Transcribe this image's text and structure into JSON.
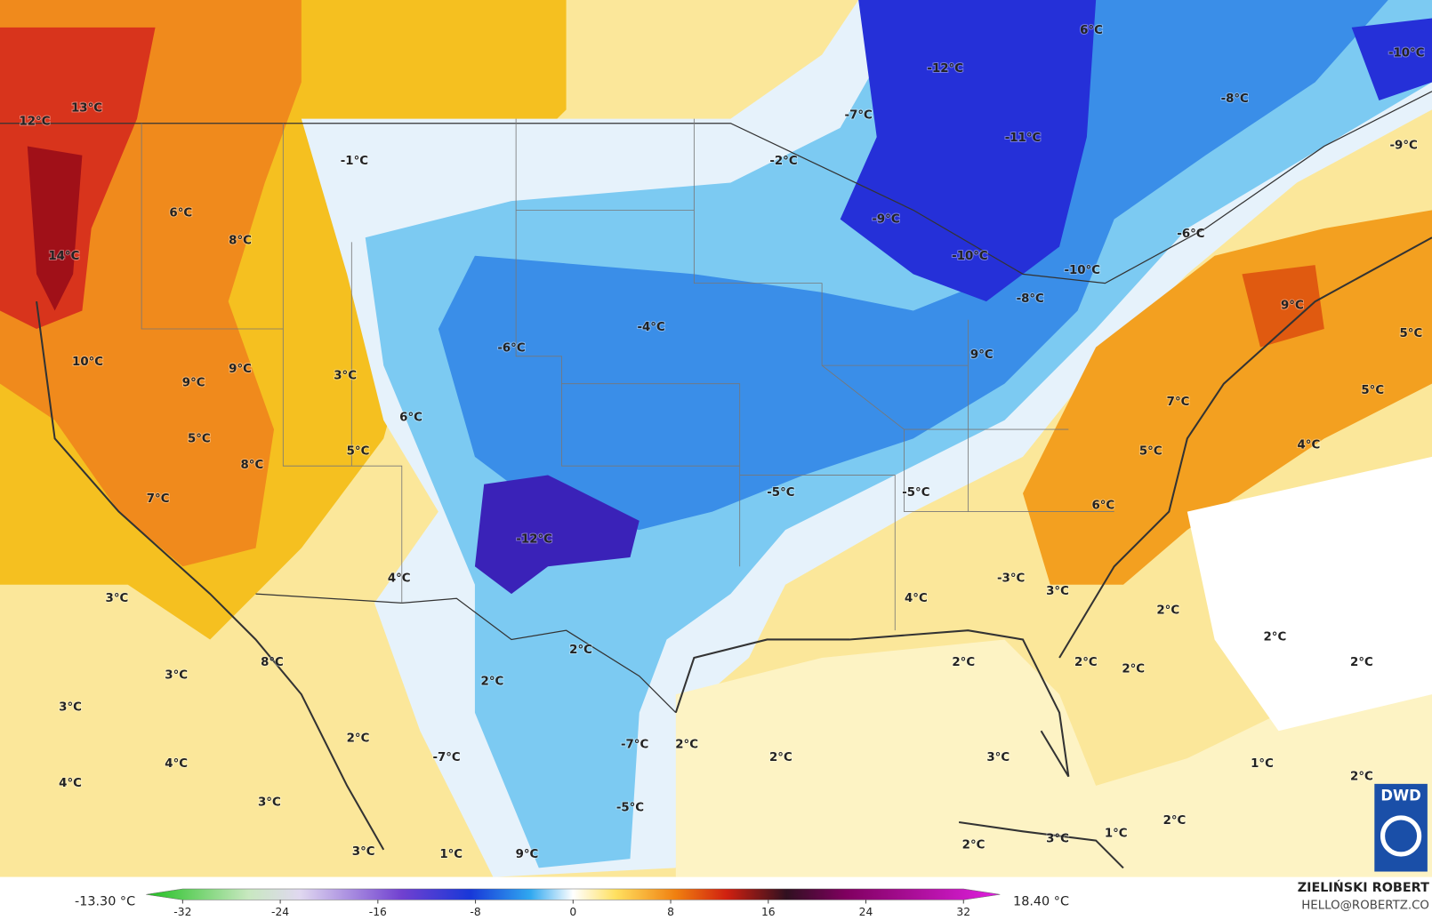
{
  "map": {
    "labels": [
      "6°C",
      "-12°C",
      "-10°C",
      "-7°C",
      "-8°C",
      "-11°C",
      "-9°C",
      "13°C",
      "12°C",
      "-1°C",
      "-2°C",
      "6°C",
      "8°C",
      "-9°C",
      "-6°C",
      "14°C",
      "-10°C",
      "-10°C",
      "-8°C",
      "9°C",
      "-4°C",
      "-6°C",
      "5°C",
      "10°C",
      "9°C",
      "9°C",
      "3°C",
      "9°C",
      "5°C",
      "7°C",
      "6°C",
      "5°C",
      "5°C",
      "8°C",
      "5°C",
      "4°C",
      "7°C",
      "-5°C",
      "-5°C",
      "6°C",
      "-12°C",
      "4°C",
      "-3°C",
      "3°C",
      "3°C",
      "4°C",
      "2°C",
      "2°C",
      "2°C",
      "8°C",
      "2°C",
      "2°C",
      "2°C",
      "2°C",
      "3°C",
      "2°C",
      "3°C",
      "2°C",
      "-7°C",
      "2°C",
      "-7°C",
      "2°C",
      "3°C",
      "1°C",
      "4°C",
      "2°C",
      "4°C",
      "3°C",
      "-5°C",
      "2°C",
      "3°C",
      "1°C",
      "2°C",
      "3°C",
      "1°C",
      "9°C"
    ]
  },
  "colorbar": {
    "min_label": "-13.30 °C",
    "max_label": "18.40 °C",
    "ticks": [
      -32,
      -24,
      -16,
      -8,
      0,
      8,
      16,
      24,
      32
    ]
  },
  "credits": {
    "author": "ZIELIŃSKI ROBERT",
    "email": "HELLO@ROBERTZ.CO",
    "logo": "DWD"
  }
}
